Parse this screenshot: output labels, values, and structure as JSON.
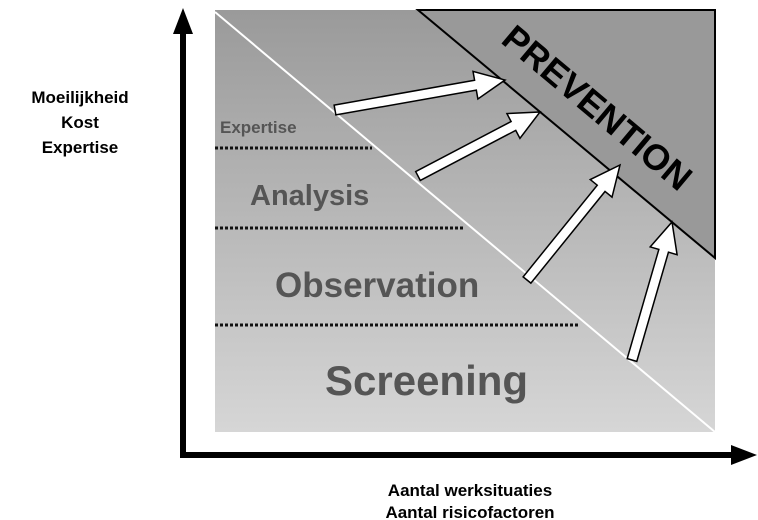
{
  "axes": {
    "y_label": [
      "Moeilijkheid",
      "Kost",
      "Expertise"
    ],
    "x_label": [
      "Aantal werksituaties",
      "Aantal risicofactoren"
    ]
  },
  "levels": [
    "Expertise",
    "Analysis",
    "Observation",
    "Screening"
  ],
  "goal": "PREVENTION"
}
